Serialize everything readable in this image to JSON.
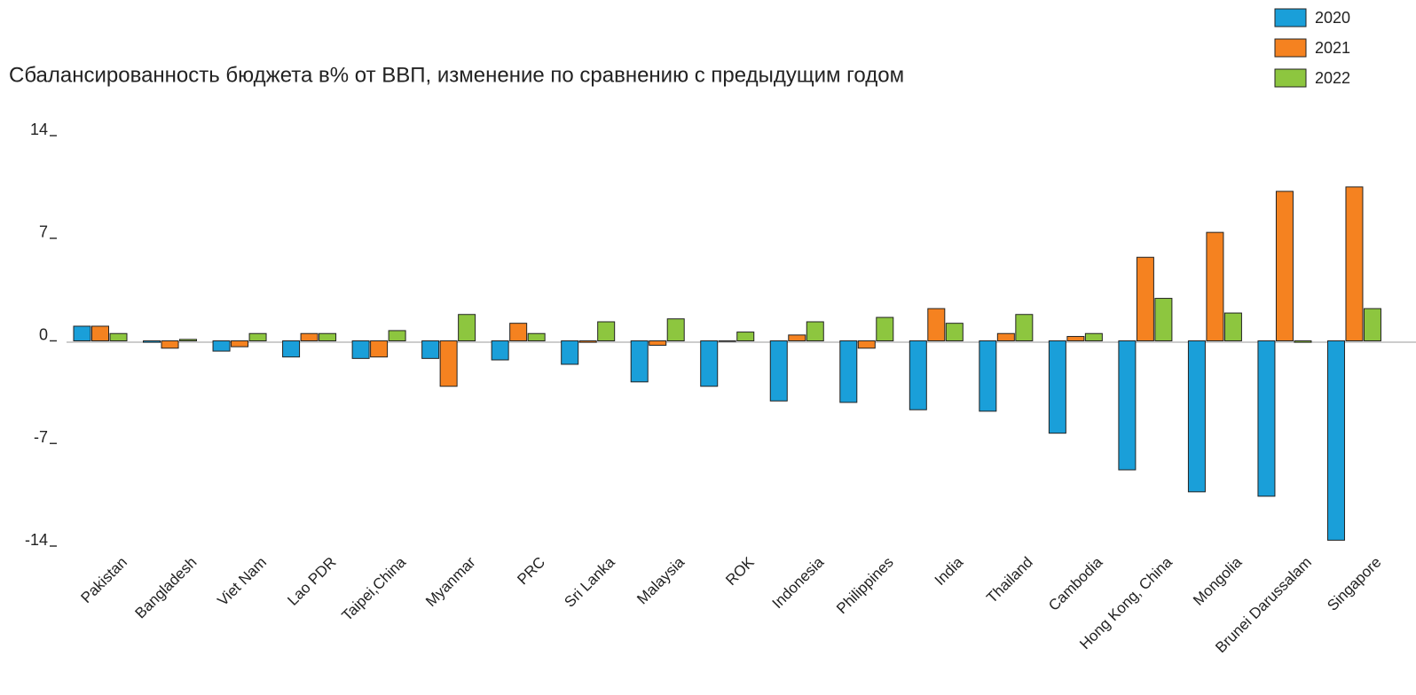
{
  "chart_data": {
    "type": "bar",
    "title": "Сбалансированность бюджета в% от ВВП, изменение по сравнению с предыдущим годом",
    "categories": [
      "Pakistan",
      "Bangladesh",
      "Viet Nam",
      "Lao PDR",
      "Taipei,China",
      "Myanmar",
      "PRC",
      "Sri Lanka",
      "Malaysia",
      "ROK",
      "Indonesia",
      "Philippines",
      "India",
      "Thailand",
      "Cambodia",
      "Hong Kong, China",
      "Mongolia",
      "Brunei Darussalam",
      "Singapore"
    ],
    "series": [
      {
        "name": "2020",
        "color": "#1a9fd9",
        "values": [
          1.0,
          -0.1,
          -0.7,
          -1.1,
          -1.2,
          -1.2,
          -1.3,
          -1.6,
          -2.8,
          -3.1,
          -4.1,
          -4.2,
          -4.7,
          -4.8,
          -6.3,
          -8.8,
          -10.3,
          -10.6,
          -13.6
        ]
      },
      {
        "name": "2021",
        "color": "#f58220",
        "values": [
          1.0,
          -0.5,
          -0.4,
          0.5,
          -1.1,
          -3.1,
          1.2,
          -0.1,
          -0.3,
          0,
          0.4,
          -0.5,
          2.2,
          0.5,
          0.3,
          5.7,
          7.4,
          10.2,
          10.5
        ]
      },
      {
        "name": "2022",
        "color": "#8dc63f",
        "values": [
          0.5,
          0.1,
          0.5,
          0.5,
          0.7,
          1.8,
          0.5,
          1.3,
          1.5,
          0.6,
          1.3,
          1.6,
          1.2,
          1.8,
          0.5,
          2.9,
          1.9,
          -0.1,
          2.2
        ]
      }
    ],
    "ylim": [
      -14,
      14
    ],
    "yticks": [
      -14,
      -7,
      0,
      7,
      14
    ],
    "legend": "top-right"
  }
}
